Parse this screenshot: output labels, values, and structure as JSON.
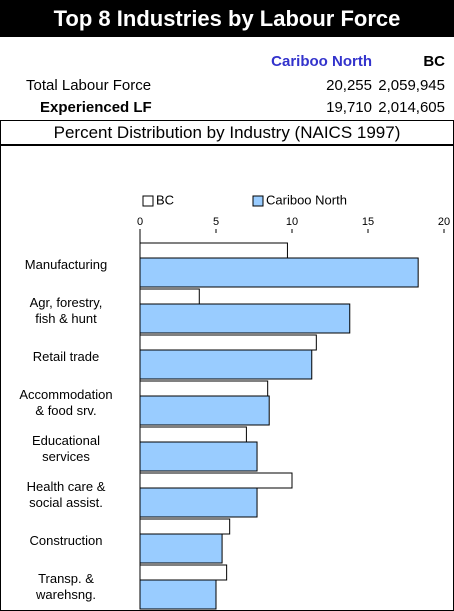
{
  "header": {
    "title": "Top 8 Industries by Labour Force",
    "columns": [
      "Cariboo North",
      "BC"
    ],
    "rows": [
      [
        "Total Labour Force",
        "20,255",
        "2,059,945"
      ],
      [
        "Experienced LF",
        "19,710",
        "2,014,605"
      ]
    ],
    "subtitle": "Percent Distribution by Industry (NAICS 1997)"
  },
  "chart_data": {
    "type": "hbar",
    "categories": [
      "Manufacturing",
      "Agr, forestry,\nfish & hunt",
      "Retail trade",
      "Accommodation\n& food srv.",
      "Educational\nservices",
      "Health care &\nsocial assist.",
      "Construction",
      "Transp. &\nwarehsng."
    ],
    "series": [
      {
        "name": "BC",
        "color": "#ffffff",
        "values": [
          9.7,
          3.9,
          11.6,
          8.4,
          7.0,
          10.0,
          5.9,
          5.7
        ]
      },
      {
        "name": "Cariboo North",
        "color": "#99ccff",
        "values": [
          18.3,
          13.8,
          11.3,
          8.5,
          7.7,
          7.7,
          5.4,
          5.0
        ]
      }
    ],
    "xlim": [
      0,
      20
    ],
    "xticks": [
      0,
      5,
      10,
      15,
      20
    ]
  }
}
